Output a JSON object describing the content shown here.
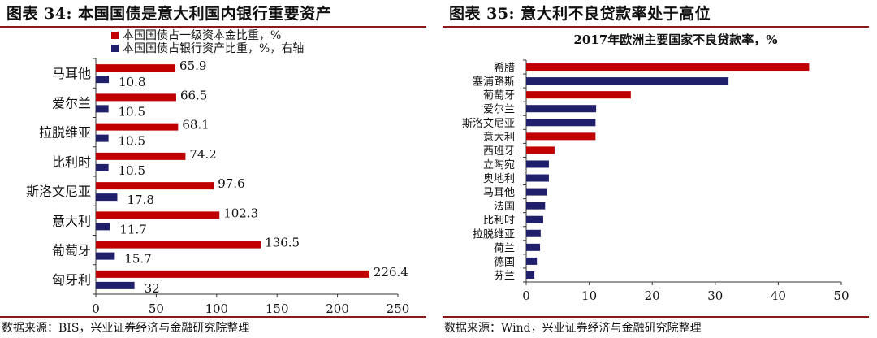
{
  "charts": [
    {
      "id": "left",
      "panel_title": "图表 34:  本国国债是意大利国内银行重要资产",
      "source": "数据来源：BIS，兴业证券经济与金融研究院整理"
    },
    {
      "id": "right",
      "panel_title": "图表 35:  意大利不良贷款率处于高位",
      "source": "数据来源：Wind，兴业证券经济与金融研究院整理"
    }
  ],
  "colors": {
    "red": "#c00000",
    "navy": "#1f1f6b",
    "rule": "#8b1a1a"
  },
  "chart_data": [
    {
      "type": "bar",
      "orientation": "horizontal",
      "title": "",
      "categories": [
        "马耳他",
        "爱尔兰",
        "拉脱维亚",
        "比利时",
        "斯洛文尼亚",
        "意大利",
        "葡萄牙",
        "匈牙利"
      ],
      "series": [
        {
          "name": "本国国债占一级资本金比重，%",
          "color": "#c00000",
          "values": [
            65.9,
            66.5,
            68.1,
            74.2,
            97.6,
            102.3,
            136.5,
            226.4
          ],
          "labels": [
            "65.9",
            "66.5",
            "68.1",
            "74.2",
            "97.6",
            "102.3",
            "136.5",
            "226.4"
          ]
        },
        {
          "name": "本国国债占银行资产比重，%，右轴",
          "color": "#1f1f6b",
          "values": [
            10.8,
            10.5,
            10.5,
            10.5,
            17.8,
            11.7,
            15.7,
            32
          ],
          "labels": [
            "10.8",
            "10.5",
            "10.5",
            "10.5",
            "17.8",
            "11.7",
            "15.7",
            "32"
          ]
        }
      ],
      "xlim": [
        0,
        250
      ],
      "xticks": [
        "0",
        "50",
        "100",
        "150",
        "200",
        "250"
      ],
      "legend_position": "top-left",
      "grid": false
    },
    {
      "type": "bar",
      "orientation": "horizontal",
      "title": "2017年欧洲主要国家不良贷款率，%",
      "categories": [
        "希腊",
        "塞浦路斯",
        "葡萄牙",
        "爱尔兰",
        "斯洛文尼亚",
        "意大利",
        "西班牙",
        "立陶宛",
        "奥地利",
        "马耳他",
        "法国",
        "比利时",
        "拉脱维亚",
        "荷兰",
        "德国",
        "芬兰"
      ],
      "values": [
        44.9,
        32.1,
        16.6,
        11.1,
        11.0,
        11.0,
        4.5,
        3.6,
        3.6,
        3.3,
        3.0,
        2.7,
        2.3,
        2.2,
        1.7,
        1.3
      ],
      "colors": [
        "#c00000",
        "#1f1f6b",
        "#c00000",
        "#1f1f6b",
        "#1f1f6b",
        "#c00000",
        "#c00000",
        "#1f1f6b",
        "#1f1f6b",
        "#1f1f6b",
        "#1f1f6b",
        "#1f1f6b",
        "#1f1f6b",
        "#1f1f6b",
        "#1f1f6b",
        "#1f1f6b"
      ],
      "xlim": [
        0,
        50
      ],
      "xticks": [
        "0",
        "10",
        "20",
        "30",
        "40",
        "50"
      ],
      "grid": false
    }
  ]
}
